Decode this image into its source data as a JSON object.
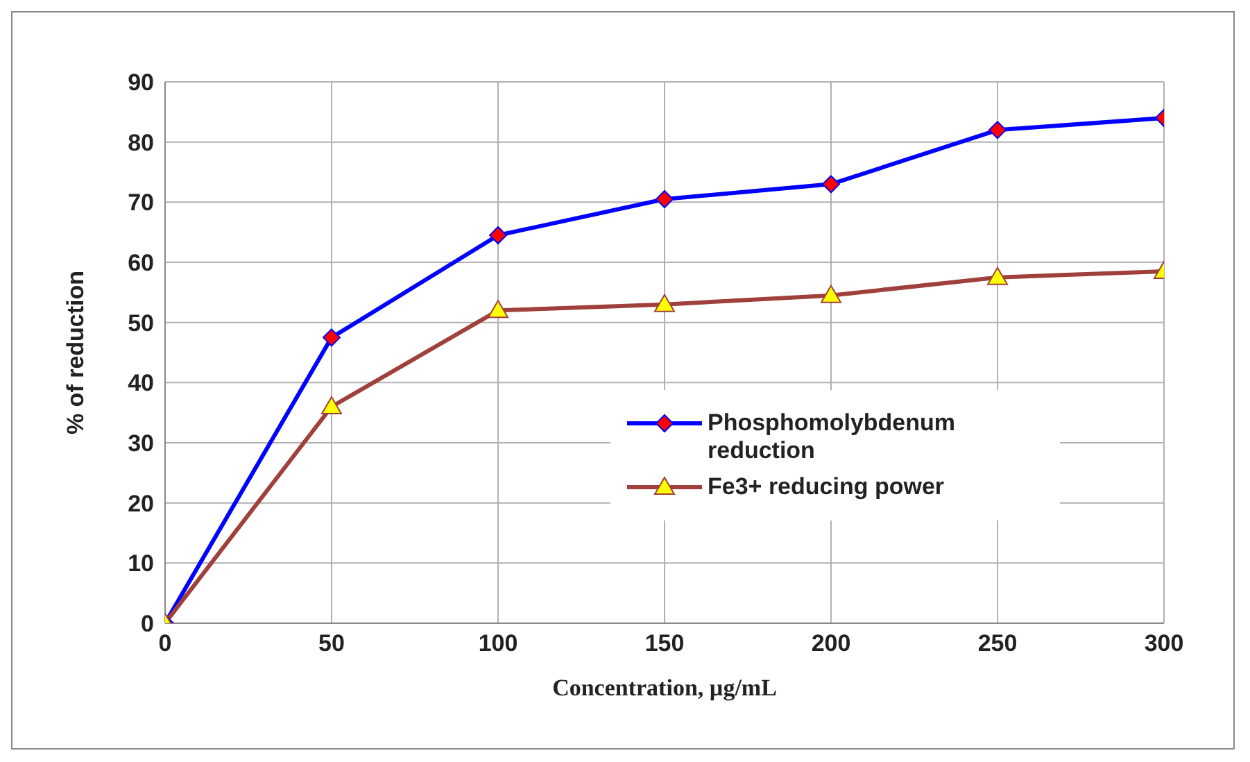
{
  "chart_data": {
    "type": "line",
    "xlabel": "Concentration, µg/mL",
    "ylabel": "% of reduction",
    "x": [
      0,
      50,
      100,
      150,
      200,
      250,
      300
    ],
    "series": [
      {
        "name": "Phosphomolybdenum reduction",
        "color": "#0000ff",
        "marker": "diamond",
        "values": [
          0,
          47.5,
          64.5,
          70.5,
          73,
          82,
          84
        ]
      },
      {
        "name": "Fe3+ reducing power",
        "color": "#a0403c",
        "marker": "triangle",
        "values": [
          0,
          36,
          52,
          53,
          54.5,
          57.5,
          58.5
        ]
      }
    ],
    "xlim": [
      0,
      300
    ],
    "xticks": [
      0,
      50,
      100,
      150,
      200,
      250,
      300
    ],
    "ylim": [
      0,
      90
    ],
    "yticks": [
      0,
      10,
      20,
      30,
      40,
      50,
      60,
      70,
      80,
      90
    ],
    "grid": true,
    "legend": "right"
  }
}
